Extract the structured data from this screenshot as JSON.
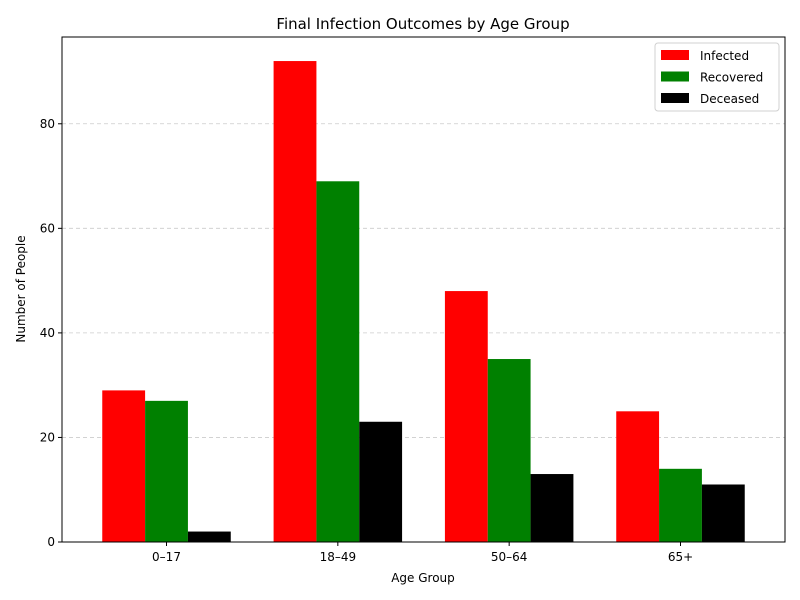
{
  "chart_data": {
    "type": "bar",
    "title": "Final Infection Outcomes by Age Group",
    "xlabel": "Age Group",
    "ylabel": "Number of People",
    "categories": [
      "0–17",
      "18–49",
      "50–64",
      "65+"
    ],
    "series": [
      {
        "name": "Infected",
        "color": "#ff0000",
        "values": [
          29,
          92,
          48,
          25
        ]
      },
      {
        "name": "Recovered",
        "color": "#008000",
        "values": [
          27,
          69,
          35,
          14
        ]
      },
      {
        "name": "Deceased",
        "color": "#000000",
        "values": [
          2,
          23,
          13,
          11
        ]
      }
    ],
    "ylim": [
      0,
      96.6
    ],
    "yticks": [
      0,
      20,
      40,
      60,
      80
    ],
    "grid": "y-dashed",
    "legend_position": "top-right"
  }
}
